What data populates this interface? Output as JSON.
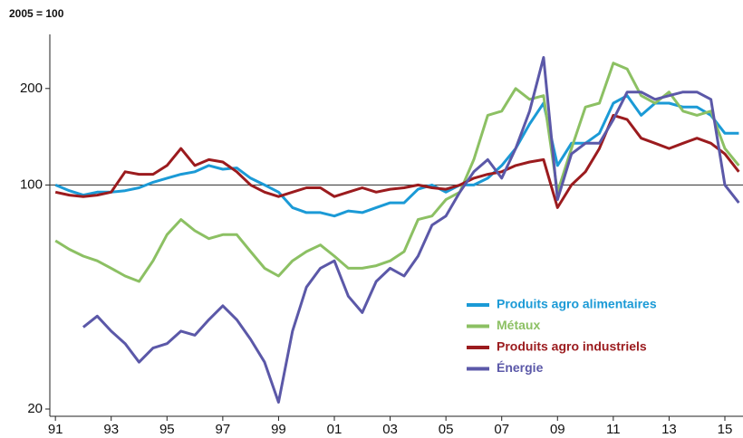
{
  "chart_data": {
    "type": "line",
    "subtitle": "2005 = 100",
    "x": [
      1991,
      1991.5,
      1992,
      1992.5,
      1993,
      1993.5,
      1994,
      1994.5,
      1995,
      1995.5,
      1996,
      1996.5,
      1997,
      1997.5,
      1998,
      1998.5,
      1999,
      1999.5,
      2000,
      2000.5,
      2001,
      2001.5,
      2002,
      2002.5,
      2003,
      2003.5,
      2004,
      2004.5,
      2005,
      2005.5,
      2006,
      2006.5,
      2007,
      2007.5,
      2008,
      2008.5,
      2009,
      2009.5,
      2010,
      2010.5,
      2011,
      2011.5,
      2012,
      2012.5,
      2013,
      2013.5,
      2014,
      2014.5,
      2015,
      2015.5
    ],
    "series": [
      {
        "name": "Produits agro alimentaires",
        "color": "#1b9ad6",
        "values": [
          100,
          96,
          93,
          95,
          95,
          96,
          98,
          102,
          105,
          108,
          110,
          115,
          112,
          113,
          105,
          100,
          95,
          85,
          82,
          82,
          80,
          83,
          82,
          85,
          88,
          88,
          97,
          100,
          95,
          100,
          100,
          105,
          115,
          130,
          155,
          180,
          115,
          135,
          135,
          145,
          180,
          190,
          165,
          180,
          180,
          175,
          175,
          165,
          145,
          145
        ]
      },
      {
        "name": "Métaux",
        "color": "#8cc063",
        "values": [
          67,
          63,
          60,
          58,
          55,
          52,
          50,
          58,
          70,
          78,
          72,
          68,
          70,
          70,
          62,
          55,
          52,
          58,
          62,
          65,
          60,
          55,
          55,
          56,
          58,
          62,
          78,
          80,
          90,
          95,
          120,
          165,
          170,
          200,
          185,
          190,
          95,
          130,
          175,
          180,
          240,
          230,
          190,
          180,
          195,
          170,
          165,
          170,
          130,
          115
        ]
      },
      {
        "name": "Produits agro industriels",
        "color": "#9b1b1e",
        "values": [
          95,
          93,
          92,
          93,
          95,
          110,
          108,
          108,
          115,
          130,
          115,
          120,
          118,
          110,
          100,
          95,
          92,
          95,
          98,
          98,
          92,
          95,
          98,
          95,
          97,
          98,
          100,
          98,
          97,
          100,
          105,
          108,
          110,
          115,
          118,
          120,
          85,
          100,
          110,
          130,
          165,
          160,
          140,
          135,
          130,
          135,
          140,
          135,
          125,
          110
        ]
      },
      {
        "name": "Énergie",
        "color": "#5b58a8",
        "values": [
          null,
          null,
          36,
          39,
          35,
          32,
          28,
          31,
          32,
          35,
          34,
          38,
          42,
          38,
          33,
          28,
          21,
          35,
          48,
          55,
          58,
          45,
          40,
          50,
          55,
          52,
          60,
          75,
          80,
          95,
          110,
          120,
          105,
          130,
          170,
          250,
          90,
          125,
          135,
          135,
          160,
          195,
          195,
          185,
          190,
          195,
          195,
          185,
          100,
          88
        ]
      }
    ],
    "xlim": [
      1990.8,
      2015.65
    ],
    "xticks": [
      {
        "value": 1991,
        "label": "91"
      },
      {
        "value": 1993,
        "label": "93"
      },
      {
        "value": 1995,
        "label": "95"
      },
      {
        "value": 1997,
        "label": "97"
      },
      {
        "value": 1999,
        "label": "99"
      },
      {
        "value": 2001,
        "label": "01"
      },
      {
        "value": 2003,
        "label": "03"
      },
      {
        "value": 2005,
        "label": "05"
      },
      {
        "value": 2007,
        "label": "07"
      },
      {
        "value": 2009,
        "label": "09"
      },
      {
        "value": 2011,
        "label": "11"
      },
      {
        "value": 2013,
        "label": "13"
      },
      {
        "value": 2015,
        "label": "15"
      }
    ],
    "ylim": [
      20,
      295
    ],
    "yticks": [
      20,
      100,
      200
    ],
    "ylog": true,
    "reference_line": 100,
    "legend": "lower right"
  }
}
